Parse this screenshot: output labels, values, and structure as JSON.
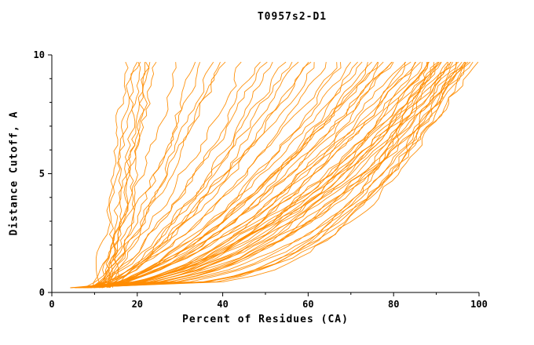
{
  "title": "T0957s2-D1",
  "chart_data": {
    "type": "line",
    "title": "T0957s2-D1",
    "xlabel": "Percent of Residues (CA)",
    "ylabel": "Distance Cutoff, A",
    "xlim": [
      0,
      100
    ],
    "ylim": [
      0,
      10
    ],
    "x_ticks": [
      0,
      20,
      40,
      60,
      80,
      100
    ],
    "x_minor_ticks": [
      10,
      30,
      50,
      70,
      90
    ],
    "y_ticks": [
      0,
      5,
      10
    ],
    "y_minor_ticks": [
      1,
      2,
      3,
      4,
      6,
      7,
      8,
      9
    ],
    "grid": false,
    "legend": "none",
    "line_color": "#ff8c00",
    "axis_color": "#000000",
    "background_color": "#ffffff",
    "y_sample_range": [
      0.2,
      9.7
    ],
    "curves": {
      "format": [
        "x_at_y_bottom",
        "x_at_y_top",
        "shape_exponent"
      ],
      "params": [
        [
          11,
          18,
          1.0
        ],
        [
          12,
          19,
          0.95
        ],
        [
          12,
          20,
          1.05
        ],
        [
          13,
          21,
          1.0
        ],
        [
          13,
          22,
          0.9
        ],
        [
          14,
          22,
          1.1
        ],
        [
          14,
          23,
          0.95
        ],
        [
          15,
          24,
          1.0
        ],
        [
          10,
          30,
          0.85
        ],
        [
          11,
          34,
          0.8
        ],
        [
          12,
          37,
          0.82
        ],
        [
          9,
          40,
          0.78
        ],
        [
          13,
          40,
          0.88
        ],
        [
          10,
          36,
          0.9
        ],
        [
          8,
          45,
          0.72
        ],
        [
          9,
          48,
          0.7
        ],
        [
          10,
          50,
          0.75
        ],
        [
          11,
          52,
          0.68
        ],
        [
          9,
          55,
          0.72
        ],
        [
          12,
          56,
          0.78
        ],
        [
          8,
          58,
          0.65
        ],
        [
          10,
          60,
          0.7
        ],
        [
          11,
          62,
          0.74
        ],
        [
          13,
          61,
          0.8
        ],
        [
          7,
          65,
          0.62
        ],
        [
          8,
          67,
          0.66
        ],
        [
          9,
          68,
          0.6
        ],
        [
          10,
          70,
          0.64
        ],
        [
          11,
          72,
          0.68
        ],
        [
          8,
          73,
          0.58
        ],
        [
          9,
          75,
          0.62
        ],
        [
          10,
          76,
          0.66
        ],
        [
          12,
          77,
          0.7
        ],
        [
          7,
          78,
          0.56
        ],
        [
          8,
          79,
          0.6
        ],
        [
          11,
          80,
          0.64
        ],
        [
          9,
          74,
          0.55
        ],
        [
          10,
          79,
          0.52
        ],
        [
          6,
          82,
          0.55
        ],
        [
          7,
          83,
          0.5
        ],
        [
          8,
          84,
          0.58
        ],
        [
          9,
          85,
          0.52
        ],
        [
          10,
          86,
          0.56
        ],
        [
          7,
          87,
          0.48
        ],
        [
          8,
          88,
          0.52
        ],
        [
          9,
          88,
          0.45
        ],
        [
          6,
          89,
          0.5
        ],
        [
          10,
          90,
          0.54
        ],
        [
          8,
          90,
          0.42
        ],
        [
          7,
          91,
          0.46
        ],
        [
          9,
          91,
          0.5
        ],
        [
          11,
          92,
          0.55
        ],
        [
          6,
          92,
          0.38
        ],
        [
          8,
          86,
          0.6
        ],
        [
          5,
          93,
          0.5
        ],
        [
          6,
          94,
          0.45
        ],
        [
          7,
          94,
          0.52
        ],
        [
          8,
          95,
          0.48
        ],
        [
          6,
          95,
          0.4
        ],
        [
          7,
          96,
          0.44
        ],
        [
          5,
          96,
          0.35
        ],
        [
          8,
          97,
          0.42
        ],
        [
          6,
          97,
          0.48
        ],
        [
          7,
          98,
          0.38
        ],
        [
          9,
          98,
          0.45
        ],
        [
          5,
          98,
          0.3
        ],
        [
          6,
          99,
          0.35
        ],
        [
          7,
          97,
          0.32
        ],
        [
          5,
          90,
          0.28
        ],
        [
          6,
          93,
          0.26
        ],
        [
          7,
          95,
          0.3
        ],
        [
          5,
          88,
          0.25
        ]
      ]
    }
  }
}
